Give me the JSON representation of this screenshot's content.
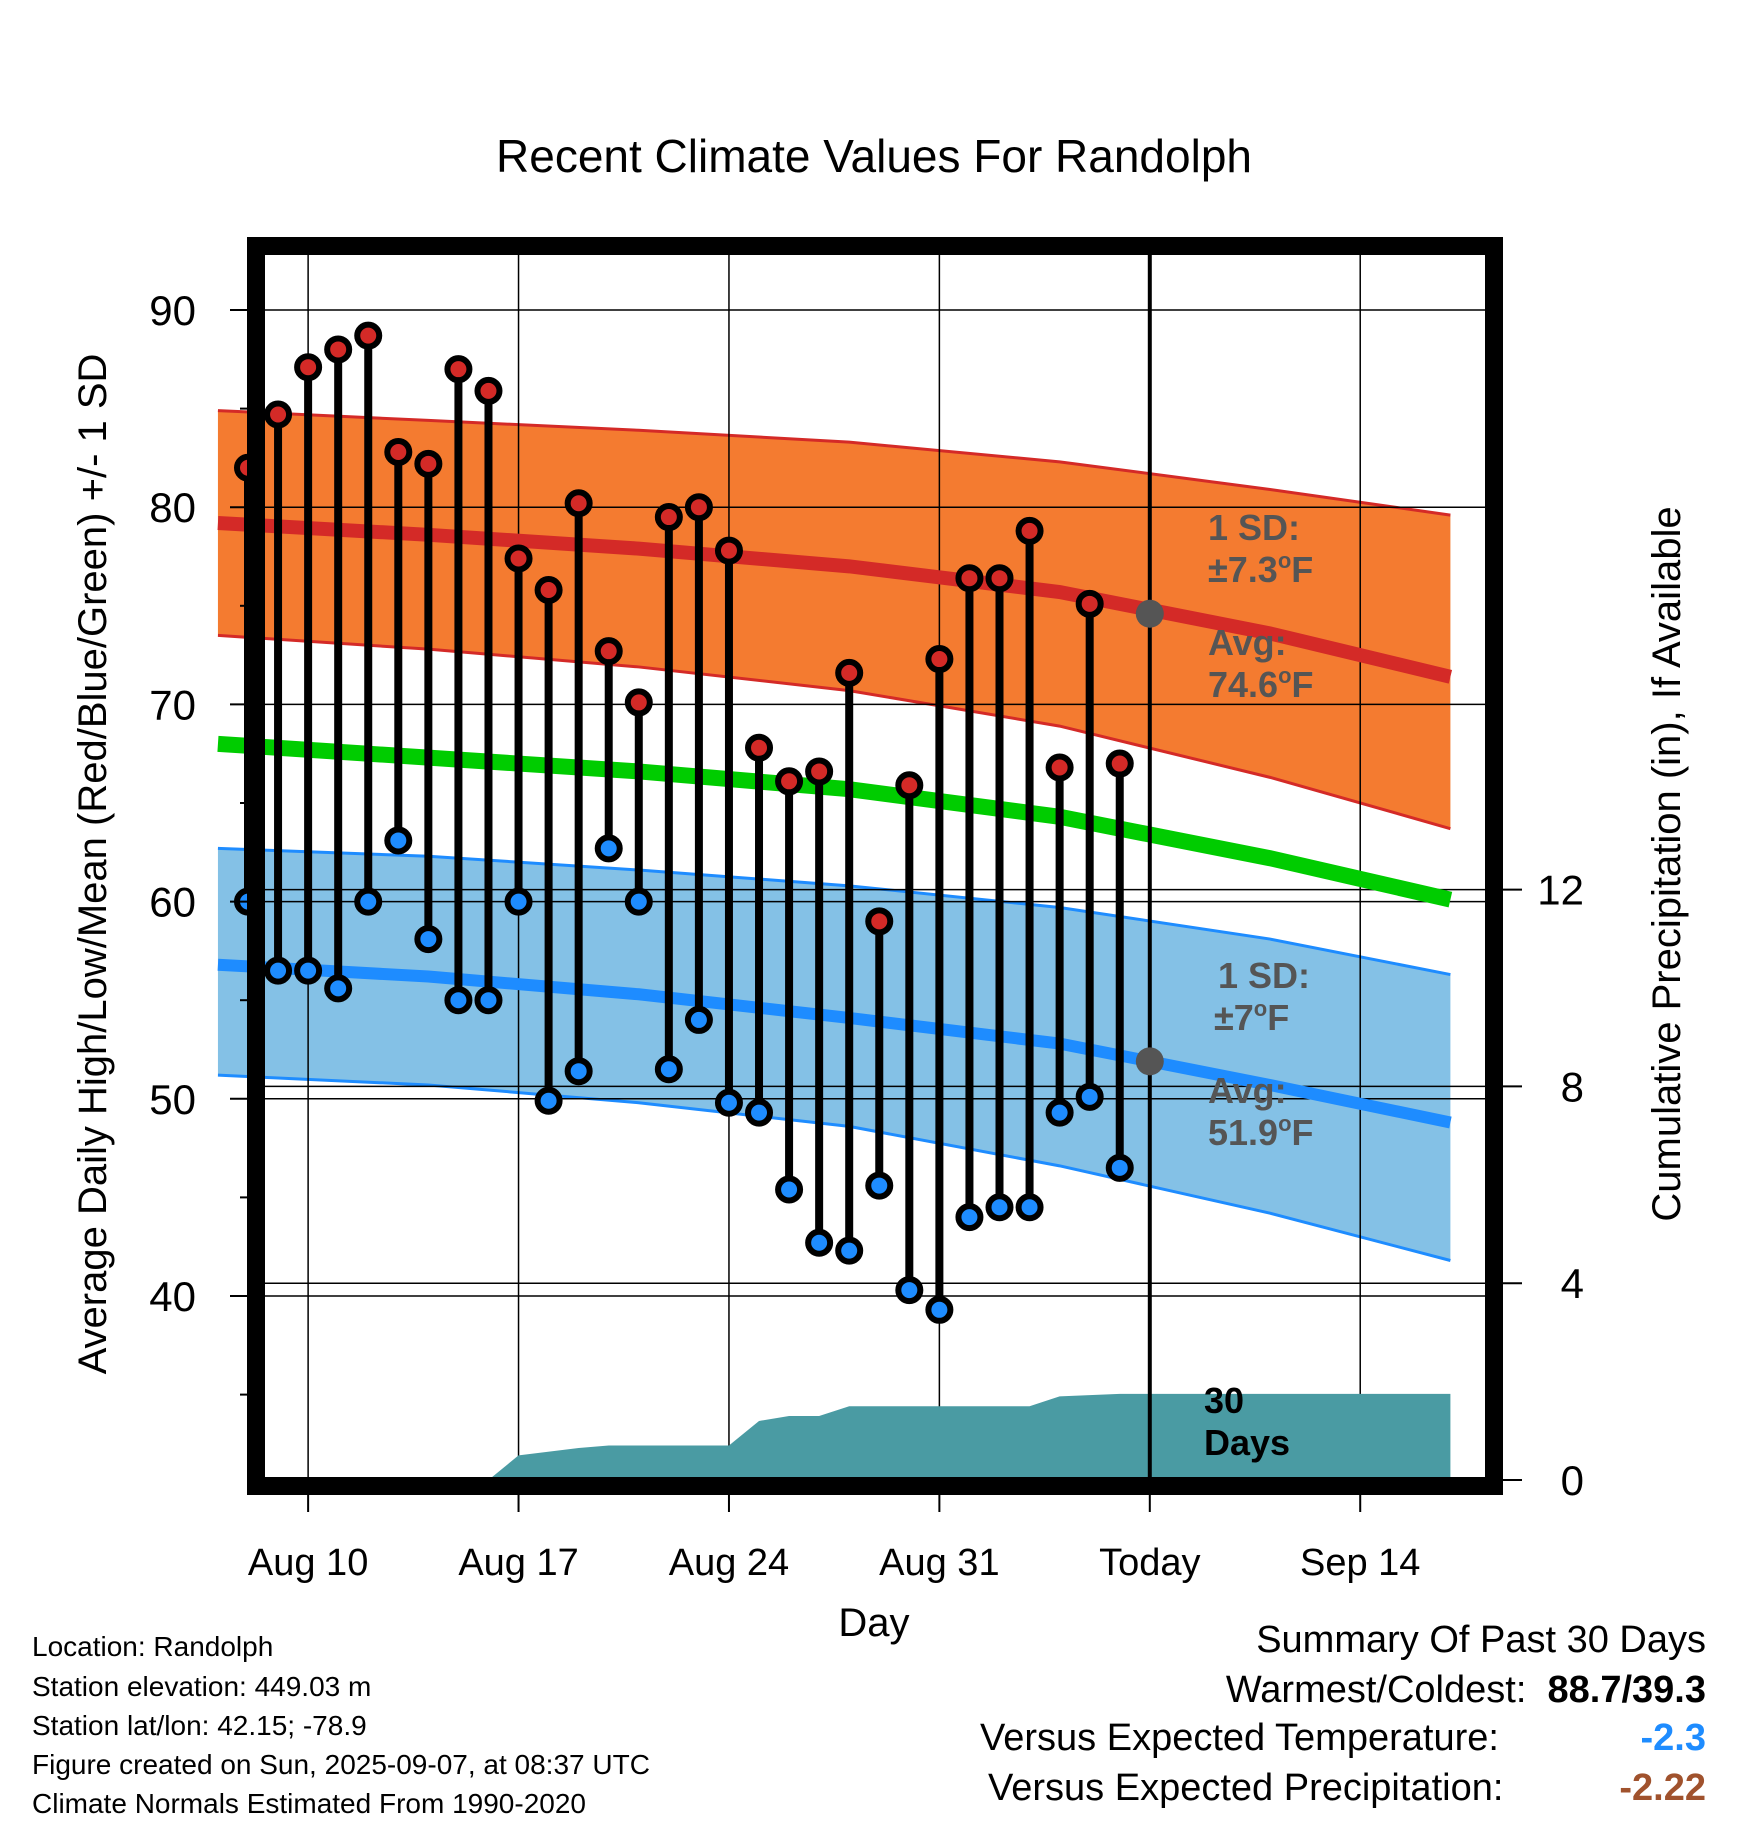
{
  "chart_data": {
    "type": "line",
    "title": "Recent Climate Values For Randolph",
    "xlabel": "Day",
    "ylabel": "Average Daily High/Low/Mean (Red/Blue/Green) +/- 1 SD",
    "ylabel_right": "Cumulative Precipitation (in), If Available",
    "ylim": [
      31.5,
      93.5
    ],
    "ylim_right": [
      0,
      37
    ],
    "yticks": [
      40,
      50,
      60,
      70,
      80,
      90
    ],
    "yticks_right": [
      0,
      4,
      8,
      12
    ],
    "x_tick_labels": [
      "Aug 10",
      "Aug 17",
      "Aug 24",
      "Aug 31",
      "Today",
      "Sep 14"
    ],
    "grid": true,
    "today_marker": "Sep 7",
    "days": [
      "Aug 8",
      "Aug 9",
      "Aug 10",
      "Aug 11",
      "Aug 12",
      "Aug 13",
      "Aug 14",
      "Aug 15",
      "Aug 16",
      "Aug 17",
      "Aug 18",
      "Aug 19",
      "Aug 20",
      "Aug 21",
      "Aug 22",
      "Aug 23",
      "Aug 24",
      "Aug 25",
      "Aug 26",
      "Aug 27",
      "Aug 28",
      "Aug 29",
      "Aug 30",
      "Aug 31",
      "Sep 1",
      "Sep 2",
      "Sep 3",
      "Sep 4",
      "Sep 5",
      "Sep 6"
    ],
    "observed_high": [
      82.0,
      84.7,
      87.1,
      88.0,
      88.7,
      82.8,
      82.2,
      87.0,
      85.9,
      77.4,
      75.8,
      80.2,
      72.7,
      70.1,
      79.5,
      80.0,
      77.8,
      67.8,
      66.1,
      66.6,
      71.6,
      59.0,
      65.9,
      72.3,
      76.4,
      76.4,
      78.8,
      66.8,
      75.1,
      67.0
    ],
    "observed_low": [
      60.0,
      56.5,
      56.5,
      55.6,
      60.0,
      63.1,
      58.1,
      55.0,
      55.0,
      60.0,
      49.9,
      51.4,
      62.7,
      60.0,
      51.5,
      54.0,
      49.8,
      49.3,
      45.4,
      42.7,
      42.3,
      45.6,
      40.3,
      39.3,
      44.0,
      44.5,
      44.5,
      49.3,
      50.1,
      46.5
    ],
    "normals": {
      "days": [
        "Aug 7",
        "Aug 14",
        "Aug 21",
        "Aug 28",
        "Sep 4",
        "Sep 11",
        "Sep 17"
      ],
      "high_mean": [
        79.2,
        78.6,
        77.9,
        77.0,
        75.7,
        73.6,
        71.4
      ],
      "high_upper": [
        84.9,
        84.4,
        83.9,
        83.3,
        82.3,
        80.9,
        79.6
      ],
      "high_lower": [
        73.5,
        72.8,
        71.9,
        70.7,
        68.9,
        66.3,
        63.7
      ],
      "mean": [
        68.0,
        67.3,
        66.6,
        65.7,
        64.3,
        62.2,
        60.1
      ],
      "low_mean": [
        56.8,
        56.2,
        55.3,
        54.1,
        52.8,
        50.7,
        48.8
      ],
      "low_upper": [
        62.7,
        62.3,
        61.6,
        60.8,
        59.7,
        58.1,
        56.3
      ],
      "low_lower": [
        51.2,
        50.7,
        49.8,
        48.6,
        46.6,
        44.2,
        41.8
      ]
    },
    "precipitation": {
      "days": [
        "Aug 7",
        "Aug 15",
        "Aug 16",
        "Aug 17",
        "Aug 19",
        "Aug 20",
        "Aug 24",
        "Aug 25",
        "Aug 26",
        "Aug 27",
        "Aug 28",
        "Sep 3",
        "Sep 4",
        "Sep 6",
        "Sep 7",
        "Sep 17"
      ],
      "cumulative": [
        0,
        0,
        0,
        0.5,
        0.65,
        0.7,
        0.7,
        1.2,
        1.3,
        1.3,
        1.5,
        1.5,
        1.7,
        1.75,
        1.75,
        1.75
      ]
    },
    "annotations": {
      "high_sd_label": "1 SD:",
      "high_sd_value": "±7.3",
      "high_avg_label": "Avg:",
      "high_avg_value": "74.6",
      "low_sd_label": "1 SD:",
      "low_sd_value": "±7",
      "low_avg_label": "Avg:",
      "low_avg_value": "51.9",
      "unit": "F",
      "degree": "o",
      "high_avg": 74.6,
      "low_avg": 51.9,
      "precip_label_1": "30",
      "precip_label_2": "Days"
    },
    "colors": {
      "high_band": "#F47B30",
      "high_line": "#D42A27",
      "mean_line": "#00CC00",
      "low_band": "#84C1E6",
      "low_line": "#1E8CFF",
      "precip": "#4A9BA3",
      "high_marker": "#D42A27",
      "low_marker": "#1E8CFF",
      "annotation": "#555555",
      "today_dot": "#555555"
    }
  },
  "info": {
    "location": "Location: Randolph",
    "elevation": "Station elevation: 449.03 m",
    "latlon": "Station lat/lon: 42.15; -78.9",
    "created": "Figure created on Sun, 2025-09-07, at 08:37 UTC",
    "normals": "Climate Normals Estimated From 1990-2020"
  },
  "summary": {
    "title": "Summary Of Past 30 Days",
    "warmest_label": "Warmest/Coldest:",
    "warmest_value": "88.7/39.3",
    "temp_label": "Versus Expected Temperature:",
    "temp_value": "-2.3",
    "temp_color": "#1E8CFF",
    "precip_label": "Versus Expected Precipitation:",
    "precip_value": "-2.22",
    "precip_color": "#A0522D"
  }
}
